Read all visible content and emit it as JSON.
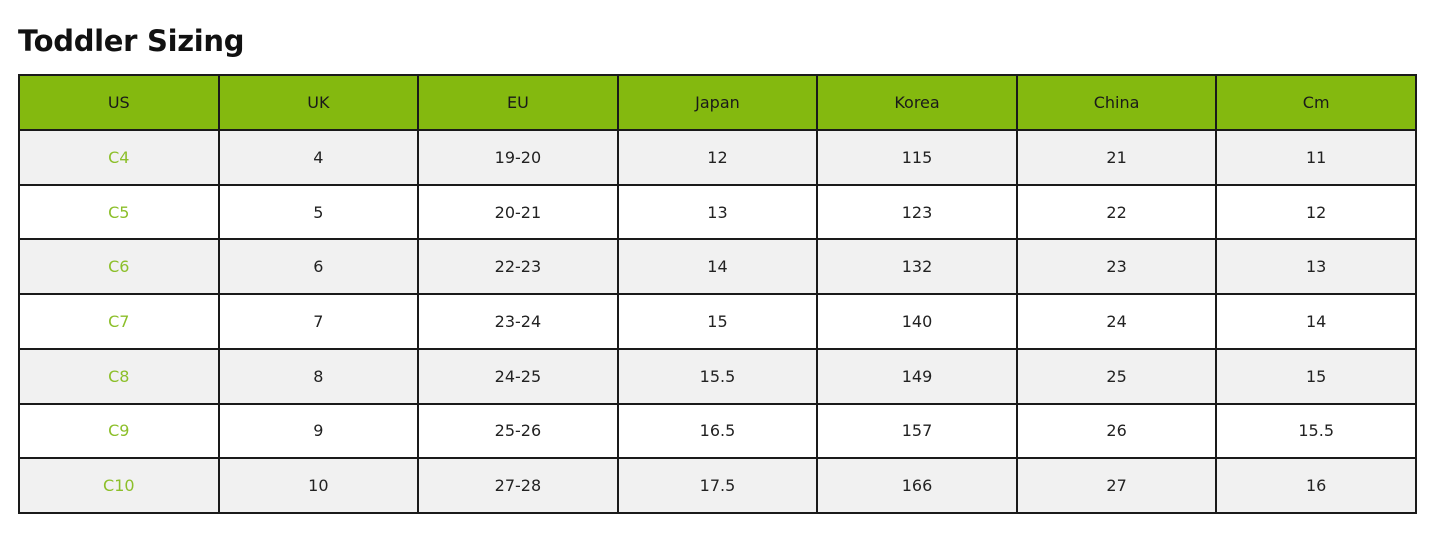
{
  "title": "Toddler Sizing",
  "accent_color": "#84b90f",
  "headers": [
    "US",
    "UK",
    "EU",
    "Japan",
    "Korea",
    "China",
    "Cm"
  ],
  "rows": [
    [
      "C4",
      "4",
      "19-20",
      "12",
      "115",
      "21",
      "11"
    ],
    [
      "C5",
      "5",
      "20-21",
      "13",
      "123",
      "22",
      "12"
    ],
    [
      "C6",
      "6",
      "22-23",
      "14",
      "132",
      "23",
      "13"
    ],
    [
      "C7",
      "7",
      "23-24",
      "15",
      "140",
      "24",
      "14"
    ],
    [
      "C8",
      "8",
      "24-25",
      "15.5",
      "149",
      "25",
      "15"
    ],
    [
      "C9",
      "9",
      "25-26",
      "16.5",
      "157",
      "26",
      "15.5"
    ],
    [
      "C10",
      "10",
      "27-28",
      "17.5",
      "166",
      "27",
      "16"
    ]
  ]
}
